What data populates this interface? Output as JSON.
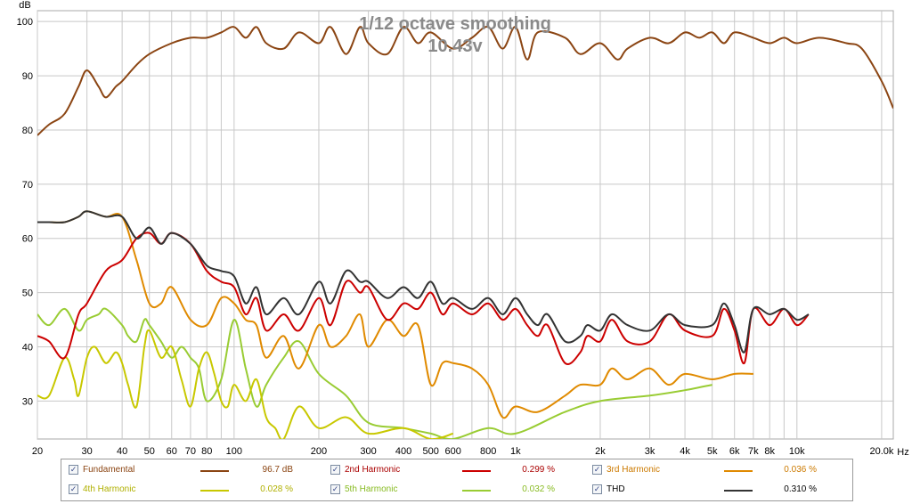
{
  "chart_data": {
    "type": "line",
    "title": "1/12 octave smoothing",
    "subtitle": "10.43v",
    "ylabel": "dB",
    "xlabel": "",
    "x_unit": "Hz",
    "x_scale": "log",
    "xlim": [
      20,
      22000
    ],
    "ylim": [
      23,
      102
    ],
    "grid": true,
    "x_ticks": [
      {
        "v": 20,
        "label": "20"
      },
      {
        "v": 30,
        "label": "30"
      },
      {
        "v": 40,
        "label": "40"
      },
      {
        "v": 50,
        "label": "50"
      },
      {
        "v": 60,
        "label": "60"
      },
      {
        "v": 70,
        "label": "70"
      },
      {
        "v": 80,
        "label": "80"
      },
      {
        "v": 100,
        "label": "100"
      },
      {
        "v": 200,
        "label": "200"
      },
      {
        "v": 300,
        "label": "300"
      },
      {
        "v": 400,
        "label": "400"
      },
      {
        "v": 500,
        "label": "500"
      },
      {
        "v": 600,
        "label": "600"
      },
      {
        "v": 800,
        "label": "800"
      },
      {
        "v": 1000,
        "label": "1k"
      },
      {
        "v": 2000,
        "label": "2k"
      },
      {
        "v": 3000,
        "label": "3k"
      },
      {
        "v": 4000,
        "label": "4k"
      },
      {
        "v": 5000,
        "label": "5k"
      },
      {
        "v": 6000,
        "label": "6k"
      },
      {
        "v": 7000,
        "label": "7k"
      },
      {
        "v": 8000,
        "label": "8k"
      },
      {
        "v": 10000,
        "label": "10k"
      },
      {
        "v": 20000,
        "label": "20.0k"
      }
    ],
    "x_minor": [
      90,
      700,
      900,
      9000
    ],
    "y_ticks": [
      30,
      40,
      50,
      60,
      70,
      80,
      90,
      100
    ],
    "series": [
      {
        "name": "Fundamental",
        "color": "#8b4513",
        "x": [
          20,
          22,
          25,
          28,
          30,
          33,
          35,
          38,
          40,
          45,
          50,
          60,
          70,
          80,
          90,
          100,
          110,
          120,
          130,
          150,
          170,
          200,
          220,
          250,
          280,
          300,
          350,
          400,
          450,
          500,
          600,
          700,
          800,
          900,
          1000,
          1100,
          1200,
          1500,
          1700,
          2000,
          2300,
          2500,
          3000,
          3500,
          4000,
          4500,
          5000,
          5500,
          6000,
          7000,
          8000,
          9000,
          10000,
          12000,
          15000,
          17000,
          20000,
          22000
        ],
        "y": [
          79,
          81,
          83,
          88,
          91,
          88,
          86,
          88,
          89,
          92,
          94,
          96,
          97,
          97,
          98,
          99,
          97,
          99,
          96,
          95,
          98,
          96,
          99,
          94,
          99,
          96,
          94,
          99,
          96,
          98,
          95,
          97,
          99,
          95,
          99,
          93,
          98,
          97,
          94,
          96,
          93,
          95,
          97,
          96,
          98,
          97,
          98,
          96,
          98,
          97,
          96,
          97,
          96,
          97,
          96,
          95,
          89,
          84
        ]
      },
      {
        "name": "2nd Harmonic",
        "color": "#cc0000",
        "x": [
          20,
          22,
          25,
          28,
          30,
          35,
          40,
          45,
          50,
          55,
          60,
          70,
          80,
          90,
          100,
          110,
          120,
          130,
          150,
          170,
          200,
          220,
          250,
          280,
          300,
          350,
          400,
          450,
          500,
          550,
          600,
          700,
          800,
          900,
          1000,
          1100,
          1200,
          1300,
          1500,
          1700,
          1800,
          2000,
          2200,
          2500,
          3000,
          3500,
          4000,
          5000,
          5500,
          6000,
          6500,
          7000,
          8000,
          9000,
          10000,
          11000
        ],
        "y": [
          42,
          41,
          38,
          46,
          48,
          54,
          56,
          60,
          61,
          59,
          61,
          59,
          54,
          52,
          51,
          46,
          49,
          43,
          46,
          43,
          49,
          44,
          52,
          50,
          51,
          45,
          48,
          47,
          50,
          46,
          48,
          46,
          48,
          45,
          47,
          44,
          42,
          44,
          37,
          39,
          42,
          41,
          45,
          41,
          41,
          46,
          43,
          42,
          47,
          43,
          37,
          47,
          44,
          47,
          44,
          46
        ]
      },
      {
        "name": "3rd Harmonic",
        "color": "#e08a00",
        "x": [
          20,
          22,
          25,
          28,
          30,
          35,
          40,
          45,
          50,
          55,
          60,
          70,
          80,
          90,
          100,
          110,
          120,
          130,
          150,
          170,
          200,
          220,
          250,
          280,
          300,
          350,
          400,
          450,
          500,
          550,
          600,
          700,
          800,
          900,
          1000,
          1200,
          1500,
          1700,
          2000,
          2200,
          2500,
          3000,
          3500,
          4000,
          5000,
          6000,
          7000
        ],
        "y": [
          63,
          63,
          63,
          64,
          65,
          64,
          64,
          56,
          48,
          48,
          51,
          45,
          44,
          49,
          48,
          45,
          44,
          38,
          42,
          36,
          44,
          40,
          42,
          46,
          40,
          45,
          42,
          44,
          33,
          37,
          37,
          36,
          33,
          27,
          29,
          28,
          31,
          33,
          33,
          36,
          34,
          36,
          33,
          35,
          34,
          35,
          35
        ]
      },
      {
        "name": "4th Harmonic",
        "color": "#c8c800",
        "x": [
          20,
          22,
          25,
          27,
          28,
          30,
          32,
          35,
          38,
          40,
          42,
          45,
          48,
          50,
          55,
          60,
          65,
          70,
          75,
          80,
          85,
          90,
          95,
          100,
          110,
          120,
          130,
          140,
          150,
          170,
          200,
          250,
          300,
          400,
          500,
          600
        ],
        "y": [
          31,
          31,
          38,
          34,
          31,
          38,
          40,
          37,
          39,
          37,
          33,
          29,
          40,
          43,
          38,
          40,
          34,
          29,
          36,
          39,
          35,
          30,
          29,
          33,
          30,
          34,
          27,
          25,
          23,
          29,
          25,
          27,
          24,
          25,
          23,
          24
        ]
      },
      {
        "name": "5th Harmonic",
        "color": "#99cc33",
        "x": [
          20,
          22,
          25,
          28,
          30,
          33,
          35,
          40,
          42,
          45,
          48,
          50,
          55,
          60,
          65,
          70,
          75,
          80,
          90,
          100,
          110,
          120,
          130,
          150,
          170,
          200,
          250,
          300,
          400,
          500,
          600,
          800,
          1000,
          1500,
          2000,
          3000,
          4000,
          5000
        ],
        "y": [
          46,
          44,
          47,
          43,
          45,
          46,
          47,
          44,
          42,
          41,
          45,
          44,
          41,
          38,
          40,
          38,
          36,
          30,
          34,
          45,
          36,
          29,
          33,
          38,
          41,
          35,
          31,
          26,
          25,
          24,
          23,
          25,
          24,
          28,
          30,
          31,
          32,
          33
        ]
      },
      {
        "name": "THD",
        "color": "#333333",
        "x": [
          20,
          22,
          25,
          28,
          30,
          35,
          40,
          45,
          50,
          55,
          60,
          70,
          80,
          90,
          100,
          110,
          120,
          130,
          150,
          170,
          200,
          220,
          250,
          280,
          300,
          350,
          400,
          450,
          500,
          550,
          600,
          700,
          800,
          900,
          1000,
          1100,
          1200,
          1300,
          1500,
          1700,
          1800,
          2000,
          2200,
          2500,
          3000,
          3500,
          4000,
          5000,
          5500,
          6000,
          6500,
          7000,
          8000,
          9000,
          10000,
          11000
        ],
        "y": [
          63,
          63,
          63,
          64,
          65,
          64,
          64,
          60,
          62,
          59,
          61,
          59,
          55,
          54,
          53,
          48,
          51,
          46,
          49,
          46,
          52,
          48,
          54,
          52,
          52,
          49,
          51,
          49,
          52,
          48,
          49,
          47,
          49,
          46,
          49,
          46,
          44,
          46,
          41,
          42,
          44,
          43,
          46,
          44,
          43,
          46,
          44,
          44,
          48,
          44,
          39,
          47,
          46,
          47,
          45,
          46
        ]
      }
    ]
  },
  "legend": [
    {
      "name": "Fundamental",
      "value": "96.7 dB",
      "color": "#8b4513",
      "checked": "✓"
    },
    {
      "name": "2nd Harmonic",
      "value": "0.299 %",
      "color": "#cc0000",
      "checked": "✓"
    },
    {
      "name": "3rd Harmonic",
      "value": "0.036 %",
      "color": "#e08a00",
      "checked": "✓"
    },
    {
      "name": "4th Harmonic",
      "value": "0.028 %",
      "color": "#c8c800",
      "checked": "✓"
    },
    {
      "name": "5th Harmonic",
      "value": "0.032 %",
      "color": "#99cc33",
      "checked": "✓"
    },
    {
      "name": "THD",
      "value": "0.310 %",
      "color": "#333333",
      "checked": "✓"
    }
  ],
  "legend_text_colors": {
    "Fundamental": "#8b4513",
    "2nd Harmonic": "#aa0000",
    "3rd Harmonic": "#cc7a00",
    "4th Harmonic": "#b0b000",
    "5th Harmonic": "#88bb22",
    "THD": "#000000"
  }
}
